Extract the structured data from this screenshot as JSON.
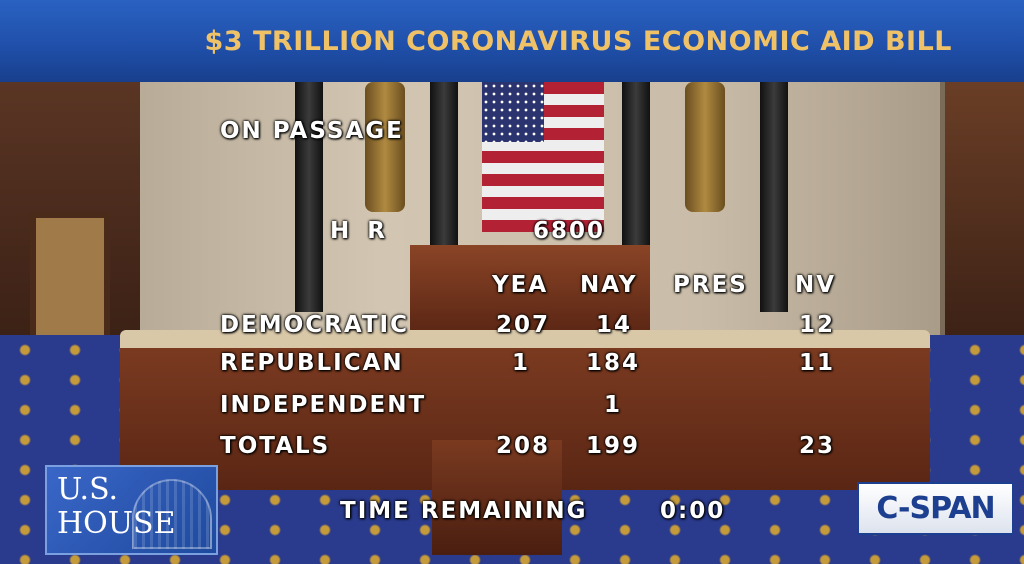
{
  "banner": {
    "title": "$3 TRILLION CORONAVIRUS ECONOMIC AID BILL"
  },
  "vote": {
    "motion": "ON PASSAGE",
    "bill_prefix": "H R",
    "bill_number": "6800",
    "columns": [
      "YEA",
      "NAY",
      "PRES",
      "NV"
    ],
    "rows": [
      {
        "party": "DEMOCRATIC",
        "yea": "207",
        "nay": "14",
        "pres": "",
        "nv": "12"
      },
      {
        "party": "REPUBLICAN",
        "yea": "1",
        "nay": "184",
        "pres": "",
        "nv": "11"
      },
      {
        "party": "INDEPENDENT",
        "yea": "",
        "nay": "1",
        "pres": "",
        "nv": ""
      },
      {
        "party": "TOTALS",
        "yea": "208",
        "nay": "199",
        "pres": "",
        "nv": "23"
      }
    ],
    "time_label": "TIME REMAINING",
    "time_value": "0:00"
  },
  "logos": {
    "house": "U.S. HOUSE",
    "network": "C-SPAN"
  },
  "colors": {
    "banner_blue": "#1f4ea8",
    "banner_text": "#f0c268",
    "carpet": "#2a3a8c"
  }
}
